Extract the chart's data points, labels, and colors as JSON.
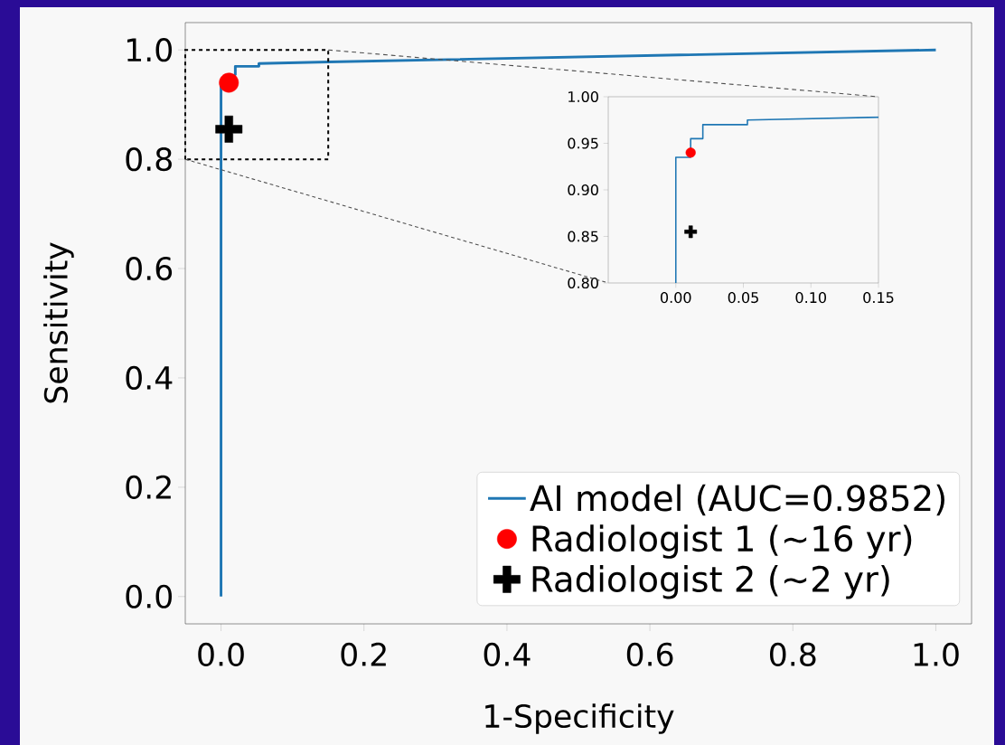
{
  "chart_data": [
    {
      "type": "line",
      "xlabel": "1-Specificity",
      "ylabel": "Sensitivity",
      "xlim": [
        -0.05,
        1.05
      ],
      "ylim": [
        -0.05,
        1.05
      ],
      "xticks": [
        {
          "value": 0,
          "label": "0.0"
        },
        {
          "value": 0.2,
          "label": "0.2"
        },
        {
          "value": 0.4,
          "label": "0.4"
        },
        {
          "value": 0.6,
          "label": "0.6"
        },
        {
          "value": 0.8,
          "label": "0.8"
        },
        {
          "value": 1,
          "label": "1.0"
        }
      ],
      "yticks": [
        {
          "value": 0,
          "label": "0.0"
        },
        {
          "value": 0.2,
          "label": "0.2"
        },
        {
          "value": 0.4,
          "label": "0.4"
        },
        {
          "value": 0.6,
          "label": "0.6"
        },
        {
          "value": 0.8,
          "label": "0.8"
        },
        {
          "value": 1,
          "label": "1.0"
        }
      ],
      "grid": false,
      "legend": "bottom right",
      "series": [
        {
          "name": "AI model (AUC=0.9852)",
          "type": "line",
          "color": "#1f77b4",
          "x": [
            0,
            0,
            0.02,
            0.02,
            0.053,
            0.053,
            0.15,
            1.0
          ],
          "values": [
            0,
            0.935,
            0.955,
            0.97,
            0.97,
            0.975,
            0.978,
            1.0
          ]
        },
        {
          "name": "Radiologist 1 (~16 yr)",
          "type": "scatter",
          "marker": "circle",
          "color": "#ff0000",
          "x": [
            0.011
          ],
          "values": [
            0.94
          ]
        },
        {
          "name": "Radiologist 2 (~2 yr)",
          "type": "scatter",
          "marker": "cross",
          "color": "#000000",
          "x": [
            0.011
          ],
          "values": [
            0.855
          ]
        }
      ]
    },
    {
      "type": "line",
      "xlim": [
        -0.05,
        0.15
      ],
      "ylim": [
        0.8,
        1.0
      ],
      "xticks": [
        {
          "value": 0,
          "label": "0.00"
        },
        {
          "value": 0.05,
          "label": "0.05"
        },
        {
          "value": 0.1,
          "label": "0.10"
        },
        {
          "value": 0.15,
          "label": "0.15"
        }
      ],
      "yticks": [
        {
          "value": 0.8,
          "label": "0.80"
        },
        {
          "value": 0.85,
          "label": "0.85"
        },
        {
          "value": 0.9,
          "label": "0.90"
        },
        {
          "value": 0.95,
          "label": "0.95"
        },
        {
          "value": 1.0,
          "label": "1.00"
        }
      ],
      "grid": false,
      "legend": false,
      "series": [
        {
          "type": "line",
          "color": "#1f77b4",
          "x": [
            0,
            0,
            0.011,
            0.011,
            0.02,
            0.02,
            0.053,
            0.053,
            0.15
          ],
          "values": [
            0.8,
            0.935,
            0.935,
            0.955,
            0.955,
            0.97,
            0.97,
            0.975,
            0.978
          ]
        },
        {
          "type": "scatter",
          "marker": "circle",
          "color": "#ff0000",
          "x": [
            0.011
          ],
          "values": [
            0.94
          ]
        },
        {
          "type": "scatter",
          "marker": "cross",
          "color": "#000000",
          "x": [
            0.011
          ],
          "values": [
            0.855
          ]
        }
      ]
    }
  ]
}
